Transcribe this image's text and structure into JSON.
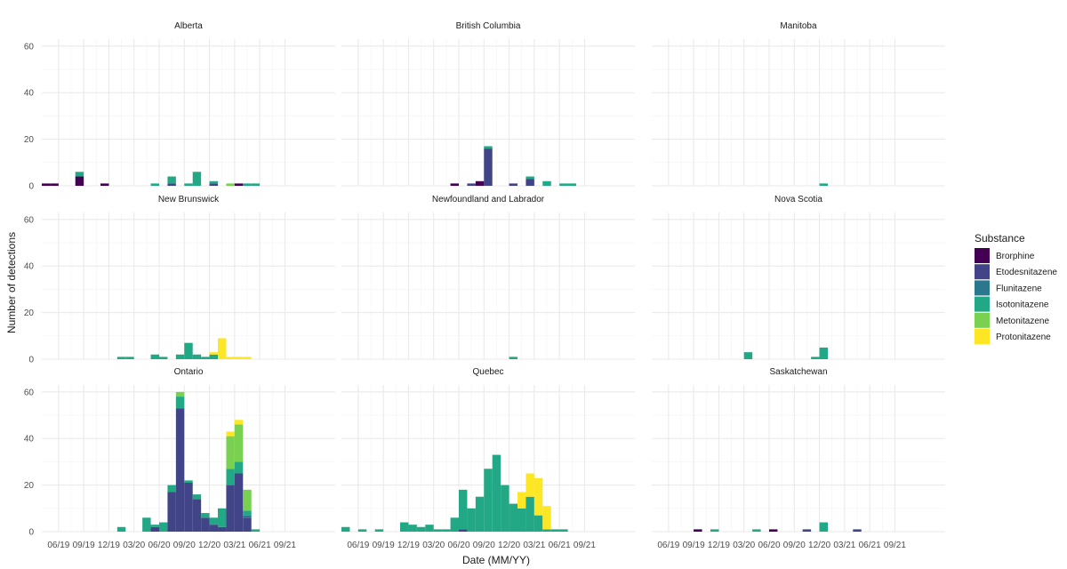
{
  "chart_data": {
    "type": "bar",
    "subtype": "stacked-faceted-histogram",
    "xlabel": "Date (MM/YY)",
    "ylabel": "Number of detections",
    "ylim": [
      0,
      63
    ],
    "y_ticks": [
      0,
      20,
      40,
      60
    ],
    "x_range": [
      0,
      35
    ],
    "x_ticks": [
      {
        "label": "06/19",
        "value": 2
      },
      {
        "label": "09/19",
        "value": 5
      },
      {
        "label": "12/19",
        "value": 8
      },
      {
        "label": "03/20",
        "value": 11
      },
      {
        "label": "06/20",
        "value": 14
      },
      {
        "label": "09/20",
        "value": 17
      },
      {
        "label": "12/20",
        "value": 20
      },
      {
        "label": "03/21",
        "value": 23
      },
      {
        "label": "06/21",
        "value": 26
      },
      {
        "label": "09/21",
        "value": 29
      }
    ],
    "bin_width": 1,
    "grid": true,
    "legend": {
      "title": "Substance",
      "position": "right",
      "entries": [
        {
          "name": "Brorphine",
          "color": "#440154"
        },
        {
          "name": "Etodesnitazene",
          "color": "#414487"
        },
        {
          "name": "Flunitazene",
          "color": "#2a788e"
        },
        {
          "name": "Isotonitazene",
          "color": "#22a884"
        },
        {
          "name": "Metonitazene",
          "color": "#7ad151"
        },
        {
          "name": "Protonitazene",
          "color": "#fde725"
        }
      ]
    },
    "panels": [
      {
        "name": "Alberta",
        "bars": [
          {
            "x": 0,
            "Brorphine": 1
          },
          {
            "x": 1,
            "Brorphine": 1
          },
          {
            "x": 4,
            "Brorphine": 4,
            "Isotonitazene": 2
          },
          {
            "x": 7,
            "Brorphine": 1
          },
          {
            "x": 13,
            "Isotonitazene": 1
          },
          {
            "x": 15,
            "Etodesnitazene": 1,
            "Isotonitazene": 3
          },
          {
            "x": 17,
            "Isotonitazene": 1
          },
          {
            "x": 18,
            "Isotonitazene": 6
          },
          {
            "x": 20,
            "Etodesnitazene": 1,
            "Isotonitazene": 1
          },
          {
            "x": 22,
            "Metonitazene": 1
          },
          {
            "x": 23,
            "Brorphine": 1
          },
          {
            "x": 24,
            "Isotonitazene": 1
          },
          {
            "x": 25,
            "Isotonitazene": 1
          }
        ]
      },
      {
        "name": "British Columbia",
        "bars": [
          {
            "x": 13,
            "Brorphine": 1
          },
          {
            "x": 15,
            "Etodesnitazene": 1
          },
          {
            "x": 16,
            "Brorphine": 2
          },
          {
            "x": 17,
            "Etodesnitazene": 16,
            "Isotonitazene": 1
          },
          {
            "x": 20,
            "Etodesnitazene": 1
          },
          {
            "x": 22,
            "Etodesnitazene": 3,
            "Isotonitazene": 1
          },
          {
            "x": 24,
            "Isotonitazene": 2
          },
          {
            "x": 26,
            "Isotonitazene": 1
          },
          {
            "x": 27,
            "Isotonitazene": 1
          }
        ]
      },
      {
        "name": "Manitoba",
        "bars": [
          {
            "x": 20,
            "Isotonitazene": 1
          }
        ]
      },
      {
        "name": "New Brunswick",
        "bars": [
          {
            "x": 9,
            "Isotonitazene": 1
          },
          {
            "x": 10,
            "Isotonitazene": 1
          },
          {
            "x": 13,
            "Isotonitazene": 2
          },
          {
            "x": 14,
            "Isotonitazene": 1
          },
          {
            "x": 16,
            "Isotonitazene": 2
          },
          {
            "x": 17,
            "Isotonitazene": 7
          },
          {
            "x": 18,
            "Isotonitazene": 2
          },
          {
            "x": 19,
            "Isotonitazene": 1
          },
          {
            "x": 20,
            "Isotonitazene": 2,
            "Protonitazene": 1
          },
          {
            "x": 21,
            "Protonitazene": 9
          },
          {
            "x": 22,
            "Protonitazene": 1
          },
          {
            "x": 23,
            "Protonitazene": 1
          },
          {
            "x": 24,
            "Protonitazene": 1
          }
        ]
      },
      {
        "name": "Newfoundland and Labrador",
        "bars": [
          {
            "x": 20,
            "Isotonitazene": 1
          }
        ]
      },
      {
        "name": "Nova Scotia",
        "bars": [
          {
            "x": 11,
            "Isotonitazene": 3
          },
          {
            "x": 19,
            "Isotonitazene": 1
          },
          {
            "x": 20,
            "Isotonitazene": 5
          }
        ]
      },
      {
        "name": "Ontario",
        "bars": [
          {
            "x": 9,
            "Isotonitazene": 2
          },
          {
            "x": 12,
            "Isotonitazene": 6
          },
          {
            "x": 13,
            "Etodesnitazene": 2,
            "Isotonitazene": 1
          },
          {
            "x": 14,
            "Isotonitazene": 4
          },
          {
            "x": 15,
            "Etodesnitazene": 17,
            "Isotonitazene": 3
          },
          {
            "x": 16,
            "Etodesnitazene": 53,
            "Isotonitazene": 5,
            "Metonitazene": 2
          },
          {
            "x": 17,
            "Etodesnitazene": 21,
            "Isotonitazene": 1
          },
          {
            "x": 18,
            "Etodesnitazene": 14,
            "Isotonitazene": 2
          },
          {
            "x": 19,
            "Etodesnitazene": 6,
            "Isotonitazene": 2
          },
          {
            "x": 20,
            "Etodesnitazene": 3,
            "Isotonitazene": 3
          },
          {
            "x": 21,
            "Etodesnitazene": 2,
            "Isotonitazene": 8
          },
          {
            "x": 22,
            "Etodesnitazene": 20,
            "Isotonitazene": 7,
            "Metonitazene": 14,
            "Protonitazene": 2
          },
          {
            "x": 23,
            "Etodesnitazene": 25,
            "Isotonitazene": 5,
            "Metonitazene": 16,
            "Protonitazene": 2
          },
          {
            "x": 24,
            "Etodesnitazene": 6,
            "Flunitazene": 1,
            "Isotonitazene": 2,
            "Metonitazene": 9
          },
          {
            "x": 25,
            "Isotonitazene": 1
          }
        ]
      },
      {
        "name": "Quebec",
        "bars": [
          {
            "x": 0,
            "Isotonitazene": 2
          },
          {
            "x": 2,
            "Isotonitazene": 1
          },
          {
            "x": 4,
            "Isotonitazene": 1
          },
          {
            "x": 7,
            "Isotonitazene": 4
          },
          {
            "x": 8,
            "Isotonitazene": 3
          },
          {
            "x": 9,
            "Isotonitazene": 2
          },
          {
            "x": 10,
            "Isotonitazene": 3
          },
          {
            "x": 11,
            "Isotonitazene": 1
          },
          {
            "x": 12,
            "Isotonitazene": 1
          },
          {
            "x": 13,
            "Isotonitazene": 6
          },
          {
            "x": 14,
            "Etodesnitazene": 1,
            "Isotonitazene": 17
          },
          {
            "x": 15,
            "Isotonitazene": 10
          },
          {
            "x": 16,
            "Isotonitazene": 15
          },
          {
            "x": 17,
            "Isotonitazene": 27
          },
          {
            "x": 18,
            "Isotonitazene": 33
          },
          {
            "x": 19,
            "Isotonitazene": 20
          },
          {
            "x": 20,
            "Isotonitazene": 12
          },
          {
            "x": 21,
            "Isotonitazene": 10,
            "Protonitazene": 7
          },
          {
            "x": 22,
            "Isotonitazene": 15,
            "Protonitazene": 10
          },
          {
            "x": 23,
            "Isotonitazene": 7,
            "Protonitazene": 16
          },
          {
            "x": 24,
            "Isotonitazene": 1,
            "Protonitazene": 10
          },
          {
            "x": 25,
            "Isotonitazene": 1
          },
          {
            "x": 26,
            "Isotonitazene": 1
          }
        ]
      },
      {
        "name": "Saskatchewan",
        "bars": [
          {
            "x": 5,
            "Brorphine": 1
          },
          {
            "x": 7,
            "Isotonitazene": 1
          },
          {
            "x": 12,
            "Isotonitazene": 1
          },
          {
            "x": 14,
            "Brorphine": 1
          },
          {
            "x": 18,
            "Etodesnitazene": 1
          },
          {
            "x": 20,
            "Isotonitazene": 4
          },
          {
            "x": 24,
            "Etodesnitazene": 1
          }
        ]
      }
    ]
  }
}
